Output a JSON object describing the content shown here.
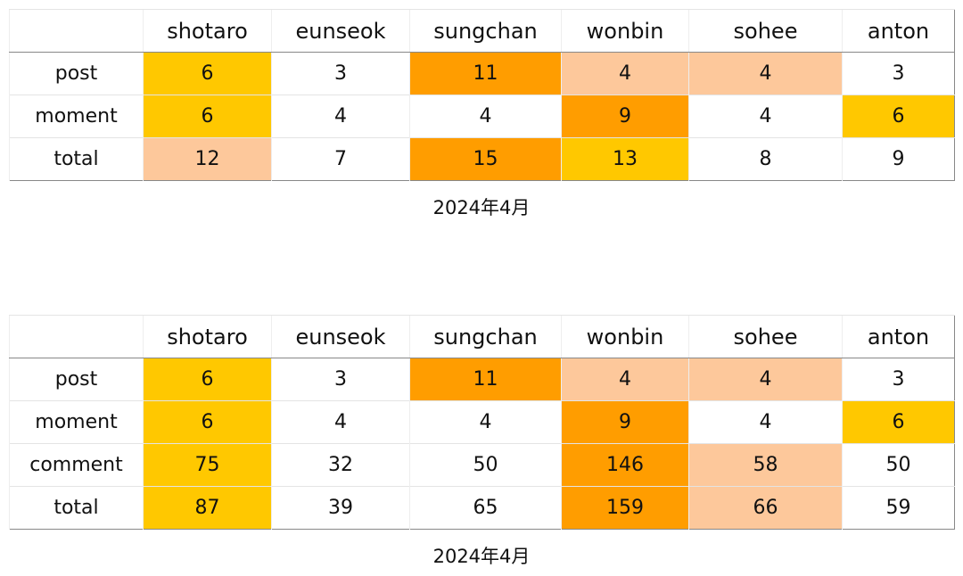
{
  "tables": [
    {
      "headers": [
        "shotaro",
        "eunseok",
        "sungchan",
        "wonbin",
        "sohee",
        "anton"
      ],
      "rows": [
        {
          "label": "post",
          "values": [
            6,
            3,
            11,
            4,
            4,
            3
          ],
          "fills": [
            "#ffc800",
            "#ffffff",
            "#ff9d00",
            "#fdc89b",
            "#fdc89b",
            "#ffffff"
          ]
        },
        {
          "label": "moment",
          "values": [
            6,
            4,
            4,
            9,
            4,
            6
          ],
          "fills": [
            "#ffc800",
            "#ffffff",
            "#ffffff",
            "#ff9d00",
            "#ffffff",
            "#ffc800"
          ]
        },
        {
          "label": "total",
          "values": [
            12,
            7,
            15,
            13,
            8,
            9
          ],
          "fills": [
            "#fdc89b",
            "#ffffff",
            "#ff9d00",
            "#ffc800",
            "#ffffff",
            "#ffffff"
          ]
        }
      ],
      "caption": "2024年4月"
    },
    {
      "headers": [
        "shotaro",
        "eunseok",
        "sungchan",
        "wonbin",
        "sohee",
        "anton"
      ],
      "rows": [
        {
          "label": "post",
          "values": [
            6,
            3,
            11,
            4,
            4,
            3
          ],
          "fills": [
            "#ffc800",
            "#ffffff",
            "#ff9d00",
            "#fdc89b",
            "#fdc89b",
            "#ffffff"
          ]
        },
        {
          "label": "moment",
          "values": [
            6,
            4,
            4,
            9,
            4,
            6
          ],
          "fills": [
            "#ffc800",
            "#ffffff",
            "#ffffff",
            "#ff9d00",
            "#ffffff",
            "#ffc800"
          ]
        },
        {
          "label": "comment",
          "values": [
            75,
            32,
            50,
            146,
            58,
            50
          ],
          "fills": [
            "#ffc800",
            "#ffffff",
            "#ffffff",
            "#ff9d00",
            "#fdc89b",
            "#ffffff"
          ]
        },
        {
          "label": "total",
          "values": [
            87,
            39,
            65,
            159,
            66,
            59
          ],
          "fills": [
            "#ffc800",
            "#ffffff",
            "#ffffff",
            "#ff9d00",
            "#fdc89b",
            "#ffffff"
          ]
        }
      ],
      "caption": "2024年4月"
    }
  ]
}
